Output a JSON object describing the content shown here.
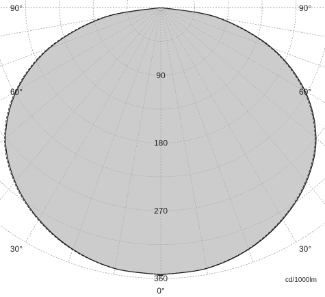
{
  "chart_data": {
    "type": "polar",
    "unit": "cd/1000lm",
    "radial_ticks": [
      90,
      180,
      270,
      360
    ],
    "rmax": 360,
    "angle_ticks": [
      "0°",
      "30°",
      "60°",
      "90°"
    ],
    "grid": true,
    "colors": {
      "fill": "#c8c8c8",
      "curve": "#1a1a1a",
      "grid": "#a0a0a0"
    },
    "series": [
      {
        "angles_deg": [
          0,
          10,
          20,
          30,
          40,
          50,
          60,
          70,
          80,
          90
        ],
        "values": [
          355,
          352,
          342,
          325,
          302,
          270,
          222,
          158,
          78,
          0
        ]
      }
    ]
  }
}
